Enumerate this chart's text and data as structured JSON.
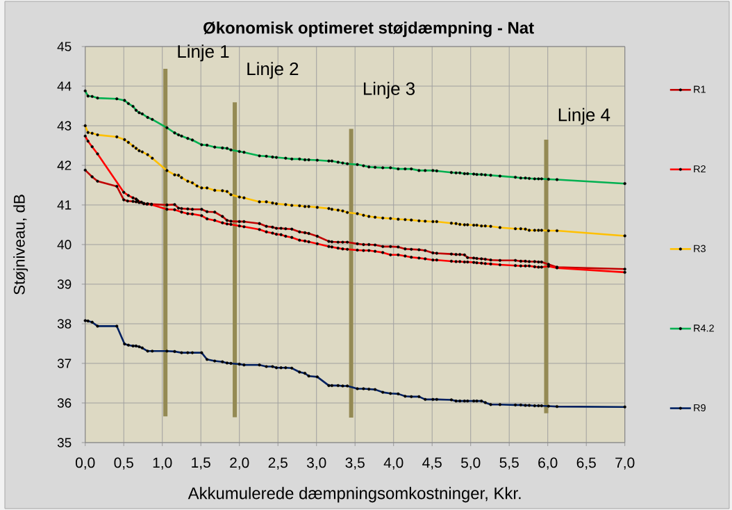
{
  "chart_data": {
    "type": "line",
    "title": "Økonomisk optimeret støjdæmpning - Nat",
    "xlabel": "Akkumulerede dæmpningsomkostninger, Kkr.",
    "ylabel": "Støjniveau, dB",
    "xlim": [
      0,
      7
    ],
    "ylim": [
      35,
      45
    ],
    "xticks": [
      {
        "value": 0,
        "label": "0,0"
      },
      {
        "value": 0.5,
        "label": "0,5"
      },
      {
        "value": 1,
        "label": "1,0"
      },
      {
        "value": 1.5,
        "label": "1,5"
      },
      {
        "value": 2,
        "label": "2,0"
      },
      {
        "value": 2.5,
        "label": "2,5"
      },
      {
        "value": 3,
        "label": "3,0"
      },
      {
        "value": 3.5,
        "label": "3,5"
      },
      {
        "value": 4,
        "label": "4,0"
      },
      {
        "value": 4.5,
        "label": "4,5"
      },
      {
        "value": 5,
        "label": "5,0"
      },
      {
        "value": 5.5,
        "label": "5,5"
      },
      {
        "value": 6,
        "label": "6,0"
      },
      {
        "value": 6.5,
        "label": "6,5"
      },
      {
        "value": 7,
        "label": "7,0"
      }
    ],
    "yticks": [
      35,
      36,
      37,
      38,
      39,
      40,
      41,
      42,
      43,
      44,
      45
    ],
    "grid": true,
    "legend": "right",
    "marker": "circle",
    "line_style": "solid",
    "annotations": [
      {
        "text": "Linje 1",
        "x": 1.04,
        "y": 43.86
      },
      {
        "text": "Linje 2",
        "x": 1.94,
        "y": 43.42
      },
      {
        "text": "Linje 3",
        "x": 3.45,
        "y": 42.92
      },
      {
        "text": "Linje 4",
        "x": 5.98,
        "y": 42.26
      }
    ],
    "series": [
      {
        "name": "R1",
        "color": "#c00000",
        "x": [
          0,
          0.09,
          0.16,
          0.41,
          0.5,
          0.55,
          0.62,
          0.66,
          0.7,
          0.76,
          0.81,
          0.86,
          1.06,
          1.16,
          1.21,
          1.25,
          1.33,
          1.39,
          1.51,
          1.58,
          1.68,
          1.78,
          1.84,
          1.89,
          2.0,
          2.06,
          2.26,
          2.35,
          2.43,
          2.48,
          2.54,
          2.6,
          2.68,
          2.78,
          2.85,
          2.9,
          3.01,
          3.16,
          3.2,
          3.28,
          3.34,
          3.4,
          3.53,
          3.61,
          3.68,
          3.76,
          3.86,
          3.96,
          4.06,
          4.15,
          4.23,
          4.33,
          4.41,
          4.51,
          4.56,
          4.75,
          4.81,
          4.86,
          4.92,
          4.96,
          5.04,
          5.08,
          5.14,
          5.19,
          5.26,
          5.38,
          5.58,
          5.65,
          5.71,
          5.76,
          5.83,
          5.88,
          5.92,
          6.01,
          6.12,
          7.0
        ],
        "values": [
          41.88,
          41.71,
          41.6,
          41.47,
          41.13,
          41.1,
          41.09,
          41.08,
          41.06,
          41.04,
          41.03,
          41.02,
          41.0,
          41.01,
          40.92,
          40.91,
          40.9,
          40.89,
          40.89,
          40.83,
          40.82,
          40.71,
          40.61,
          40.59,
          40.58,
          40.58,
          40.53,
          40.46,
          40.44,
          40.41,
          40.41,
          40.4,
          40.39,
          40.32,
          40.3,
          40.28,
          40.21,
          40.08,
          40.07,
          40.06,
          40.06,
          40.06,
          40.02,
          40.0,
          40.0,
          39.99,
          39.95,
          39.95,
          39.94,
          39.89,
          39.88,
          39.87,
          39.85,
          39.79,
          39.78,
          39.76,
          39.75,
          39.75,
          39.74,
          39.67,
          39.66,
          39.65,
          39.64,
          39.63,
          39.61,
          39.6,
          39.6,
          39.58,
          39.58,
          39.57,
          39.57,
          39.56,
          39.56,
          39.5,
          39.43,
          39.38
        ]
      },
      {
        "name": "R2",
        "color": "#ff0000",
        "x": [
          0,
          0.036,
          0.09,
          0.16,
          0.5,
          0.56,
          0.62,
          0.66,
          0.68,
          0.73,
          0.76,
          0.8,
          0.86,
          1.06,
          1.16,
          1.25,
          1.33,
          1.39,
          1.51,
          1.58,
          1.68,
          1.78,
          1.84,
          1.89,
          2.0,
          2.06,
          2.26,
          2.35,
          2.43,
          2.48,
          2.54,
          2.6,
          2.68,
          2.78,
          2.85,
          2.9,
          3.01,
          3.16,
          3.2,
          3.28,
          3.34,
          3.4,
          3.53,
          3.61,
          3.68,
          3.76,
          3.86,
          3.96,
          4.06,
          4.15,
          4.23,
          4.33,
          4.41,
          4.51,
          4.56,
          4.75,
          4.81,
          4.86,
          4.92,
          4.96,
          5.04,
          5.08,
          5.14,
          5.19,
          5.26,
          5.38,
          5.58,
          5.65,
          5.71,
          5.76,
          5.83,
          5.88,
          5.92,
          6.01,
          6.12,
          7.0
        ],
        "values": [
          42.74,
          42.61,
          42.47,
          42.29,
          41.32,
          41.24,
          41.18,
          41.15,
          41.11,
          41.07,
          41.03,
          41.02,
          41.01,
          40.89,
          40.88,
          40.82,
          40.78,
          40.77,
          40.73,
          40.65,
          40.61,
          40.55,
          40.52,
          40.51,
          40.47,
          40.45,
          40.38,
          40.32,
          40.29,
          40.26,
          40.25,
          40.21,
          40.18,
          40.11,
          40.09,
          40.07,
          40.02,
          39.95,
          39.94,
          39.91,
          39.89,
          39.88,
          39.86,
          39.85,
          39.85,
          39.83,
          39.8,
          39.74,
          39.74,
          39.71,
          39.68,
          39.66,
          39.64,
          39.61,
          39.61,
          39.58,
          39.57,
          39.57,
          39.56,
          39.56,
          39.55,
          39.54,
          39.53,
          39.52,
          39.51,
          39.49,
          39.47,
          39.46,
          39.46,
          39.46,
          39.44,
          39.43,
          39.43,
          39.45,
          39.41,
          39.3
        ]
      },
      {
        "name": "R3",
        "color": "#ffc000",
        "x": [
          0,
          0.036,
          0.09,
          0.16,
          0.41,
          0.51,
          0.56,
          0.62,
          0.66,
          0.7,
          0.74,
          0.81,
          0.87,
          1.06,
          1.16,
          1.21,
          1.25,
          1.33,
          1.39,
          1.45,
          1.51,
          1.58,
          1.68,
          1.78,
          1.84,
          1.89,
          2.0,
          2.06,
          2.26,
          2.35,
          2.43,
          2.48,
          2.6,
          2.68,
          2.78,
          2.85,
          2.9,
          3.01,
          3.16,
          3.2,
          3.28,
          3.34,
          3.4,
          3.53,
          3.61,
          3.68,
          3.76,
          3.86,
          3.96,
          4.06,
          4.15,
          4.23,
          4.33,
          4.41,
          4.51,
          4.56,
          4.75,
          4.81,
          4.86,
          4.92,
          4.96,
          5.04,
          5.08,
          5.14,
          5.19,
          5.26,
          5.38,
          5.58,
          5.65,
          5.71,
          5.76,
          5.83,
          5.88,
          5.92,
          6.01,
          6.12,
          7.0
        ],
        "values": [
          43.0,
          42.83,
          42.81,
          42.77,
          42.72,
          42.65,
          42.58,
          42.49,
          42.43,
          42.37,
          42.34,
          42.27,
          42.18,
          41.87,
          41.76,
          41.75,
          41.69,
          41.6,
          41.56,
          41.48,
          41.43,
          41.43,
          41.37,
          41.36,
          41.34,
          41.26,
          41.2,
          41.18,
          41.08,
          41.08,
          41.05,
          41.03,
          41.01,
          40.99,
          40.98,
          40.96,
          40.96,
          40.94,
          40.91,
          40.89,
          40.87,
          40.85,
          40.81,
          40.78,
          40.74,
          40.71,
          40.69,
          40.67,
          40.66,
          40.64,
          40.63,
          40.62,
          40.6,
          40.59,
          40.58,
          40.58,
          40.54,
          40.53,
          40.51,
          40.5,
          40.5,
          40.49,
          40.49,
          40.47,
          40.47,
          40.46,
          40.43,
          40.4,
          40.4,
          40.39,
          40.36,
          40.36,
          40.36,
          40.36,
          40.35,
          40.35,
          40.22
        ]
      },
      {
        "name": "R4.2",
        "color": "#00b050",
        "x": [
          0,
          0.036,
          0.09,
          0.16,
          0.41,
          0.51,
          0.56,
          0.62,
          0.66,
          0.7,
          0.74,
          0.81,
          0.87,
          1.06,
          1.16,
          1.21,
          1.25,
          1.33,
          1.39,
          1.51,
          1.58,
          1.68,
          1.78,
          1.84,
          1.89,
          2.0,
          2.06,
          2.26,
          2.35,
          2.43,
          2.48,
          2.6,
          2.68,
          2.78,
          2.85,
          2.9,
          3.01,
          3.16,
          3.2,
          3.28,
          3.34,
          3.4,
          3.53,
          3.61,
          3.68,
          3.76,
          3.86,
          3.96,
          4.06,
          4.15,
          4.23,
          4.33,
          4.41,
          4.51,
          4.56,
          4.75,
          4.81,
          4.86,
          4.92,
          4.96,
          5.04,
          5.08,
          5.14,
          5.19,
          5.26,
          5.38,
          5.58,
          5.65,
          5.71,
          5.76,
          5.83,
          5.88,
          5.92,
          6.01,
          6.12,
          7.0
        ],
        "values": [
          43.88,
          43.75,
          43.74,
          43.7,
          43.68,
          43.64,
          43.56,
          43.49,
          43.39,
          43.33,
          43.3,
          43.21,
          43.16,
          42.95,
          42.82,
          42.77,
          42.74,
          42.68,
          42.64,
          42.52,
          42.51,
          42.46,
          42.44,
          42.43,
          42.39,
          42.35,
          42.33,
          42.24,
          42.23,
          42.21,
          42.2,
          42.18,
          42.16,
          42.16,
          42.14,
          42.14,
          42.13,
          42.11,
          42.11,
          42.08,
          42.06,
          42.04,
          42.02,
          41.99,
          41.96,
          41.95,
          41.94,
          41.94,
          41.91,
          41.91,
          41.91,
          41.87,
          41.87,
          41.87,
          41.86,
          41.82,
          41.81,
          41.81,
          41.79,
          41.79,
          41.78,
          41.77,
          41.77,
          41.76,
          41.75,
          41.73,
          41.7,
          41.68,
          41.68,
          41.67,
          41.66,
          41.66,
          41.66,
          41.65,
          41.64,
          41.54
        ]
      },
      {
        "name": "R9",
        "color": "#002060",
        "x": [
          0,
          0.036,
          0.09,
          0.16,
          0.41,
          0.51,
          0.56,
          0.62,
          0.66,
          0.7,
          0.74,
          0.81,
          0.87,
          1.06,
          1.16,
          1.25,
          1.33,
          1.39,
          1.51,
          1.58,
          1.68,
          1.78,
          1.84,
          1.89,
          2.0,
          2.06,
          2.26,
          2.35,
          2.43,
          2.48,
          2.54,
          2.6,
          2.68,
          2.78,
          2.85,
          2.9,
          3.01,
          3.16,
          3.2,
          3.28,
          3.34,
          3.4,
          3.53,
          3.61,
          3.68,
          3.76,
          3.86,
          3.96,
          4.06,
          4.15,
          4.23,
          4.33,
          4.41,
          4.51,
          4.56,
          4.75,
          4.81,
          4.86,
          4.92,
          4.96,
          5.04,
          5.08,
          5.14,
          5.19,
          5.26,
          5.38,
          5.58,
          5.65,
          5.71,
          5.76,
          5.83,
          5.88,
          5.92,
          6.01,
          6.12,
          7.0
        ],
        "values": [
          38.08,
          38.07,
          38.04,
          37.94,
          37.94,
          37.49,
          37.46,
          37.44,
          37.44,
          37.42,
          37.39,
          37.31,
          37.31,
          37.31,
          37.3,
          37.27,
          37.27,
          37.27,
          37.27,
          37.1,
          37.06,
          37.04,
          37.01,
          37.0,
          36.98,
          36.96,
          36.96,
          36.92,
          36.92,
          36.89,
          36.89,
          36.89,
          36.88,
          36.78,
          36.75,
          36.68,
          36.66,
          36.44,
          36.44,
          36.44,
          36.43,
          36.43,
          36.36,
          36.36,
          36.35,
          36.34,
          36.27,
          36.24,
          36.23,
          36.17,
          36.16,
          36.16,
          36.09,
          36.09,
          36.09,
          36.08,
          36.05,
          36.05,
          36.05,
          36.05,
          36.05,
          36.05,
          36.05,
          36.01,
          35.96,
          35.96,
          35.95,
          35.95,
          35.94,
          35.94,
          35.93,
          35.93,
          35.93,
          35.92,
          35.91,
          35.9
        ]
      },
      {
        "color": "#948a54",
        "x": [
          1.04,
          1.04
        ],
        "values": [
          35.66,
          44.44
        ],
        "marker": "none"
      },
      {
        "color": "#948a54",
        "x": [
          1.94,
          1.94
        ],
        "values": [
          35.64,
          43.59
        ],
        "marker": "none"
      },
      {
        "color": "#948a54",
        "x": [
          3.45,
          3.45
        ],
        "values": [
          35.63,
          42.92
        ],
        "marker": "none"
      },
      {
        "color": "#948a54",
        "x": [
          5.98,
          5.98
        ],
        "values": [
          35.74,
          42.65
        ],
        "marker": "none"
      }
    ]
  }
}
